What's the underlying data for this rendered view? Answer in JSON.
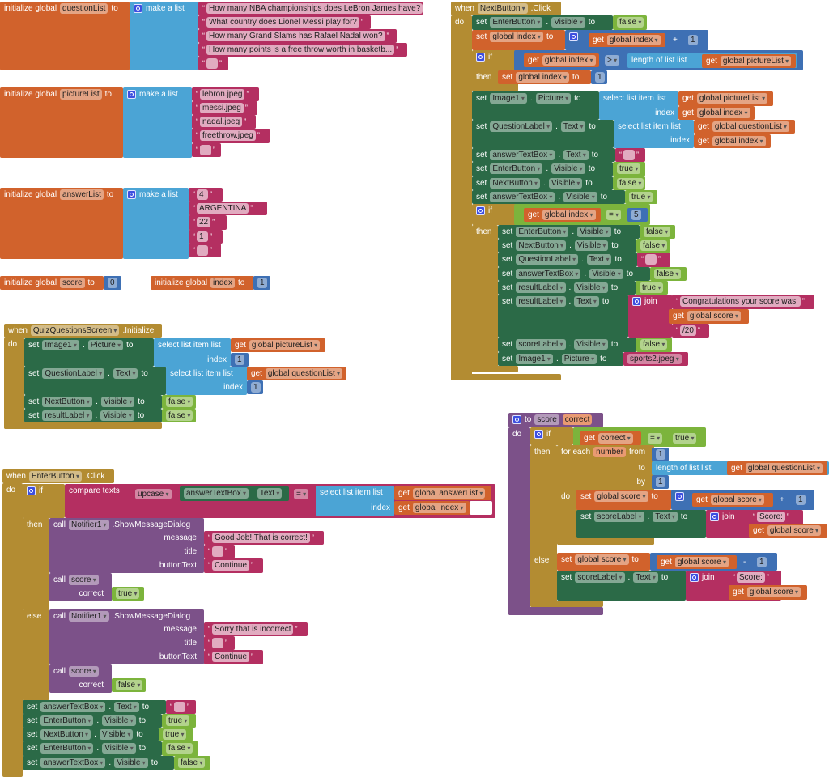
{
  "blocks": {
    "init_questionList": [
      [
        "initialize global",
        "questionList",
        "to"
      ],
      [
        "make a list"
      ],
      [
        "How many NBA championships does LeBron James have?"
      ],
      [
        "What country does Lionel Messi play for?"
      ],
      [
        "How many Grand Slams has Rafael Nadal won?"
      ],
      [
        "How many points is a free throw worth in basketb..."
      ],
      [
        ""
      ]
    ],
    "init_pictureList": [
      [
        "initialize global",
        "pictureList",
        "to"
      ],
      [
        "make a list"
      ],
      [
        "lebron.jpeg"
      ],
      [
        "messi.jpeg"
      ],
      [
        "nadal.jpeg"
      ],
      [
        "freethrow.jpeg"
      ],
      [
        ""
      ]
    ],
    "init_answerList": [
      [
        "initialize global",
        "answerList",
        "to"
      ],
      [
        "make a list"
      ],
      [
        "4"
      ],
      [
        "ARGENTINA"
      ],
      [
        "22"
      ],
      [
        "1"
      ],
      [
        ""
      ]
    ],
    "init_score": [
      [
        "initialize global",
        "score",
        "to",
        "0"
      ]
    ],
    "init_index": [
      [
        "initialize global",
        "index",
        "to",
        "1"
      ]
    ],
    "quiz_init": [
      [
        "when",
        "QuizQuestionsScreen",
        ".Initialize"
      ],
      [
        "do"
      ],
      [
        "set",
        "Image1",
        ".",
        "Picture",
        "to"
      ],
      [
        "select list item  list"
      ],
      [
        "index"
      ],
      [
        "get",
        "global pictureList"
      ],
      [
        "1"
      ],
      [
        "set",
        "QuestionLabel",
        ".",
        "Text",
        "to"
      ],
      [
        "select list item  list"
      ],
      [
        "index"
      ],
      [
        "get",
        "global questionList"
      ],
      [
        "1"
      ],
      [
        "set",
        "NextButton",
        ".",
        "Visible",
        "to"
      ],
      [
        "false"
      ],
      [
        "set",
        "resultLabel",
        ".",
        "Visible",
        "to"
      ],
      [
        "false"
      ]
    ],
    "next_click": [
      [
        "when",
        "NextButton",
        ".Click"
      ],
      [
        "do"
      ],
      [
        "set",
        "EnterButton",
        ".",
        "Visible",
        "to"
      ],
      [
        "false"
      ],
      [
        "set",
        "global index",
        "to"
      ],
      [
        "+"
      ],
      [
        "get",
        "global index"
      ],
      [
        "1"
      ],
      [
        "if"
      ],
      [
        "then"
      ],
      [
        "get",
        "global index"
      ],
      [
        ">"
      ],
      [
        "length of list  list"
      ],
      [
        "get",
        "global pictureList"
      ],
      [
        "set",
        "global index",
        "to"
      ],
      [
        "1"
      ],
      [
        "set",
        "Image1",
        ".",
        "Picture",
        "to"
      ],
      [
        "select list item  list"
      ],
      [
        "index"
      ],
      [
        "get",
        "global pictureList"
      ],
      [
        "get",
        "global index"
      ],
      [
        "set",
        "QuestionLabel",
        ".",
        "Text",
        "to"
      ],
      [
        "select list item  list"
      ],
      [
        "index"
      ],
      [
        "get",
        "global questionList"
      ],
      [
        "get",
        "global index"
      ],
      [
        "set",
        "answerTextBox",
        ".",
        "Text",
        "to"
      ],
      [
        ""
      ],
      [
        "set",
        "EnterButton",
        ".",
        "Visible",
        "to"
      ],
      [
        "true"
      ],
      [
        "set",
        "NextButton",
        ".",
        "Visible",
        "to"
      ],
      [
        "false"
      ],
      [
        "set",
        "answerTextBox",
        ".",
        "Visible",
        "to"
      ],
      [
        "true"
      ],
      [
        "if"
      ],
      [
        "then"
      ],
      [
        "get",
        "global index"
      ],
      [
        "="
      ],
      [
        "5"
      ],
      [
        "set",
        "EnterButton",
        ".",
        "Visible",
        "to"
      ],
      [
        "false"
      ],
      [
        "set",
        "NextButton",
        ".",
        "Visible",
        "to"
      ],
      [
        "false"
      ],
      [
        "set",
        "QuestionLabel",
        ".",
        "Text",
        "to"
      ],
      [
        ""
      ],
      [
        "set",
        "answerTextBox",
        ".",
        "Visible",
        "to"
      ],
      [
        "false"
      ],
      [
        "set",
        "resultLabel",
        ".",
        "Visible",
        "to"
      ],
      [
        "true"
      ],
      [
        "set",
        "resultLabel",
        ".",
        "Text",
        "to"
      ],
      [
        "join"
      ],
      [
        "Congratulations your score was:"
      ],
      [
        "get",
        "global score"
      ],
      [
        "/20"
      ],
      [
        "set",
        "scoreLabel",
        ".",
        "Visible",
        "to"
      ],
      [
        "false"
      ],
      [
        "set",
        "Image1",
        ".",
        "Picture",
        "to"
      ],
      [
        "sports2.jpeg"
      ]
    ],
    "score_proc": [
      [
        "to",
        "score",
        "correct"
      ],
      [
        "do"
      ],
      [
        "if"
      ],
      [
        "then"
      ],
      [
        "get",
        "correct"
      ],
      [
        "="
      ],
      [
        "true"
      ],
      [
        "for each",
        "number",
        "from"
      ],
      [
        "1"
      ],
      [
        "to"
      ],
      [
        "length of list  list"
      ],
      [
        "get",
        "global questionList"
      ],
      [
        "by"
      ],
      [
        "1"
      ],
      [
        "do"
      ],
      [
        "set",
        "global score",
        "to"
      ],
      [
        "get",
        "global score"
      ],
      [
        "+"
      ],
      [
        "1"
      ],
      [
        "set",
        "scoreLabel",
        ".",
        "Text",
        "to"
      ],
      [
        "join"
      ],
      [
        "Score:"
      ],
      [
        "get",
        "global score"
      ],
      [
        "else"
      ],
      [
        "set",
        "global score",
        "to"
      ],
      [
        "get",
        "global score"
      ],
      [
        "-"
      ],
      [
        "1"
      ],
      [
        "set",
        "scoreLabel",
        ".",
        "Text",
        "to"
      ],
      [
        "join"
      ],
      [
        "Score:"
      ],
      [
        "get",
        "global score"
      ]
    ],
    "enter_click": [
      [
        "when",
        "EnterButton",
        ".Click"
      ],
      [
        "do"
      ],
      [
        "if"
      ],
      [
        "compare texts"
      ],
      [
        "upcase"
      ],
      [
        "answerTextBox",
        ".",
        "Text"
      ],
      [
        "="
      ],
      [
        "select list item  list"
      ],
      [
        "index"
      ],
      [
        "get",
        "global answerList"
      ],
      [
        "get",
        "global index"
      ],
      [
        "then"
      ],
      [
        "call",
        "Notifier1",
        ".ShowMessageDialog"
      ],
      [
        "message"
      ],
      [
        "title"
      ],
      [
        "buttonText"
      ],
      [
        "Good Job! That is correct!"
      ],
      [
        ""
      ],
      [
        "Continue"
      ],
      [
        "call",
        "score"
      ],
      [
        "correct"
      ],
      [
        "true"
      ],
      [
        "else"
      ],
      [
        "call",
        "Notifier1",
        ".ShowMessageDialog"
      ],
      [
        "message"
      ],
      [
        "title"
      ],
      [
        "buttonText"
      ],
      [
        "Sorry that is incorrect"
      ],
      [
        ""
      ],
      [
        "Continue"
      ],
      [
        "call",
        "score"
      ],
      [
        "correct"
      ],
      [
        "false"
      ],
      [
        "set",
        "answerTextBox",
        ".",
        "Text",
        "to"
      ],
      [
        ""
      ],
      [
        "set",
        "EnterButton",
        ".",
        "Visible",
        "to"
      ],
      [
        "true"
      ],
      [
        "set",
        "NextButton",
        ".",
        "Visible",
        "to"
      ],
      [
        "true"
      ],
      [
        "set",
        "EnterButton",
        ".",
        "Visible",
        "to"
      ],
      [
        "false"
      ],
      [
        "set",
        "answerTextBox",
        ".",
        "Visible",
        "to"
      ],
      [
        "false"
      ]
    ]
  },
  "colors": {
    "variable": "#d1622c",
    "list": "#4ba4d5",
    "math": "#3e70b4",
    "text": "#b42f61",
    "component": "#2b6a47",
    "logic": "#7cb43c",
    "control": "#b38c32",
    "procedure": "#7c5189"
  }
}
